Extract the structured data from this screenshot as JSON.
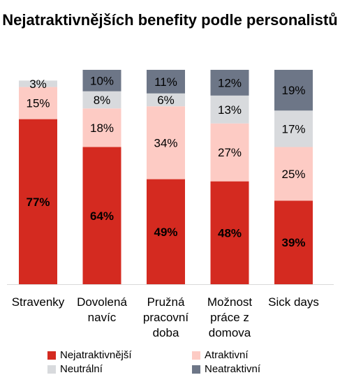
{
  "chart_data": {
    "type": "bar",
    "stacked": true,
    "title": "Nejatraktivnějších benefity podle personalistů",
    "ylim": [
      0,
      100
    ],
    "categories": [
      "Stravenky",
      "Dovolená navíc",
      "Pružná pracovní doba",
      "Možnost práce z domova",
      "Sick days"
    ],
    "category_labels": [
      "Stravenky",
      "Dovolená\nnavíc",
      "Pružná\npracovní\ndoba",
      "Možnost\npráce z\ndomova",
      "Sick days"
    ],
    "series": [
      {
        "name": "Nejatraktivnější",
        "color": "#d42a20",
        "values": [
          77,
          64,
          49,
          48,
          39
        ],
        "labels": [
          "77%",
          "64%",
          "49%",
          "48%",
          "39%"
        ],
        "bold": true
      },
      {
        "name": "Atraktivní",
        "color": "#fdcbc4",
        "values": [
          15,
          18,
          34,
          27,
          25
        ],
        "labels": [
          "15%",
          "18%",
          "34%",
          "27%",
          "25%"
        ],
        "bold": false
      },
      {
        "name": "Neutrální",
        "color": "#d8dadd",
        "values": [
          3,
          8,
          6,
          13,
          17
        ],
        "labels": [
          "3%",
          "8%",
          "6%",
          "13%",
          "17%"
        ],
        "bold": false
      },
      {
        "name": "Neatraktivní",
        "color": "#6d7687",
        "values": [
          0,
          10,
          11,
          12,
          19
        ],
        "labels": [
          "",
          "10%",
          "11%",
          "12%",
          "19%"
        ],
        "bold": false
      }
    ],
    "legend_position": "bottom",
    "grid": false
  }
}
